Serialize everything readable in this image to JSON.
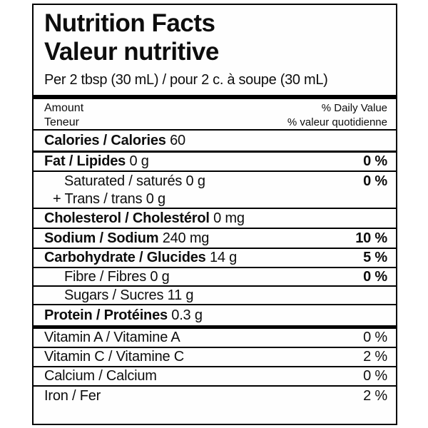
{
  "label": {
    "title_en": "Nutrition Facts",
    "title_fr": "Valeur nutritive",
    "serving": "Per 2 tbsp (30 mL) / pour 2 c. à soupe (30 mL)",
    "columns": {
      "amount_en": "Amount",
      "amount_fr": "Teneur",
      "daily_value_en": "% Daily Value",
      "daily_value_fr": "% valeur quotidienne"
    },
    "calories": {
      "label": "Calories / Calories",
      "value": "60"
    },
    "nutrients": [
      {
        "label": "Fat / Lipides",
        "value": "0 g",
        "dv": "0 %"
      },
      {
        "label": "Saturated / saturés",
        "value": "0 g",
        "dv": "0 %"
      },
      {
        "label": "+ Trans / trans",
        "value": "0 g",
        "dv": ""
      },
      {
        "label": "Cholesterol / Cholestérol",
        "value": "0 mg",
        "dv": ""
      },
      {
        "label": "Sodium / Sodium",
        "value": "240 mg",
        "dv": "10 %"
      },
      {
        "label": "Carbohydrate / Glucides",
        "value": "14 g",
        "dv": "5 %"
      },
      {
        "label": "Fibre / Fibres",
        "value": "0 g",
        "dv": "0 %"
      },
      {
        "label": "Sugars / Sucres",
        "value": "11 g",
        "dv": ""
      },
      {
        "label": "Protein / Protéines",
        "value": "0.3 g",
        "dv": ""
      }
    ],
    "micronutrients": [
      {
        "label": "Vitamin A / Vitamine A",
        "dv": "0 %"
      },
      {
        "label": "Vitamin C / Vitamine C",
        "dv": "2 %"
      },
      {
        "label": "Calcium / Calcium",
        "dv": "0 %"
      },
      {
        "label": "Iron / Fer",
        "dv": "2 %"
      }
    ],
    "colors": {
      "ink": "#0d0d0d",
      "rule": "#000000",
      "background": "#ffffff"
    }
  }
}
